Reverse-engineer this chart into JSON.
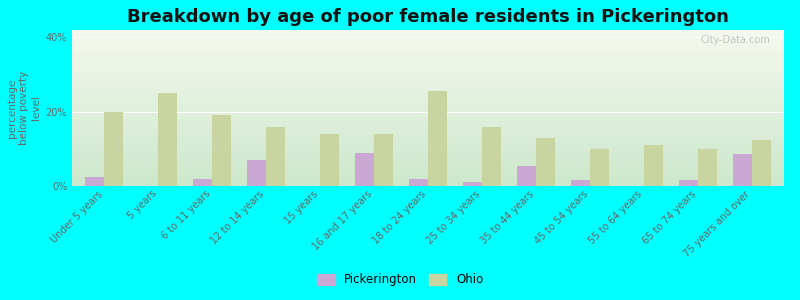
{
  "title": "Breakdown by age of poor female residents in Pickerington",
  "ylabel": "percentage\nbelow poverty\nlevel",
  "categories": [
    "Under 5 years",
    "5 years",
    "6 to 11 years",
    "12 to 14 years",
    "15 years",
    "16 and 17 years",
    "18 to 24 years",
    "25 to 34 years",
    "35 to 44 years",
    "45 to 54 years",
    "55 to 64 years",
    "65 to 74 years",
    "75 years and over"
  ],
  "pickerington_values": [
    2.5,
    0,
    2.0,
    7.0,
    0,
    9.0,
    2.0,
    1.0,
    5.5,
    1.5,
    0,
    1.5,
    8.5
  ],
  "ohio_values": [
    20.0,
    25.0,
    19.0,
    16.0,
    14.0,
    14.0,
    25.5,
    16.0,
    13.0,
    10.0,
    11.0,
    10.0,
    12.5
  ],
  "pickerington_color": "#c9a8d4",
  "ohio_color": "#c8d5a0",
  "background_color": "#00ffff",
  "plot_bg_top": "#f5f8ee",
  "plot_bg_bottom": "#cce8cc",
  "ylim": [
    0,
    42
  ],
  "yticks": [
    0,
    20,
    40
  ],
  "ytick_labels": [
    "0%",
    "20%",
    "40%"
  ],
  "bar_width": 0.35,
  "legend_labels": [
    "Pickerington",
    "Ohio"
  ],
  "title_fontsize": 13,
  "axis_label_fontsize": 7.5,
  "tick_fontsize": 7,
  "watermark": "City-Data.com"
}
